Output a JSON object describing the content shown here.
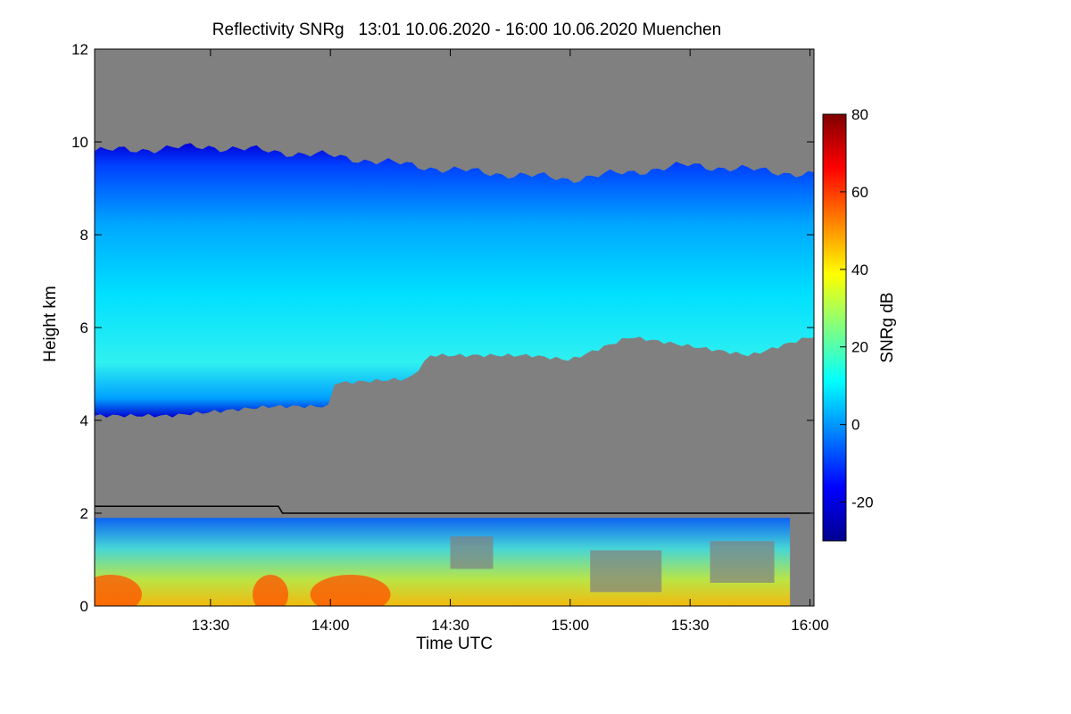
{
  "chart_data": {
    "type": "heatmap",
    "title": "Reflectivity SNRg   13:01 10.06.2020 - 16:00 10.06.2020 Muenchen",
    "xlabel": "Time UTC",
    "ylabel": "Height km",
    "xlim_minutes_utc": [
      781,
      961
    ],
    "ylim": [
      0,
      12
    ],
    "x_ticks": [
      {
        "minute": 810,
        "label": "13:30"
      },
      {
        "minute": 840,
        "label": "14:00"
      },
      {
        "minute": 870,
        "label": "14:30"
      },
      {
        "minute": 900,
        "label": "15:00"
      },
      {
        "minute": 930,
        "label": "15:30"
      },
      {
        "minute": 960,
        "label": "16:00"
      }
    ],
    "y_ticks": [
      0,
      2,
      4,
      6,
      8,
      10,
      12
    ],
    "colorbar": {
      "label": "SNRg dB",
      "range": [
        -30,
        80
      ],
      "ticks": [
        -20,
        0,
        20,
        40,
        60,
        80
      ],
      "colormap": [
        "#00008f",
        "#0000ff",
        "#0080ff",
        "#00ffff",
        "#80ff80",
        "#ffff00",
        "#ff8000",
        "#ff0000",
        "#800000"
      ]
    },
    "background_color": "#808080",
    "upper_cloud_layer": {
      "description": "cirrus layer",
      "top_km": [
        [
          781,
          9.8
        ],
        [
          810,
          9.9
        ],
        [
          840,
          9.7
        ],
        [
          870,
          9.4
        ],
        [
          900,
          9.2
        ],
        [
          930,
          9.5
        ],
        [
          960,
          9.3
        ]
      ],
      "base_km": [
        [
          781,
          4.1
        ],
        [
          800,
          4.1
        ],
        [
          825,
          4.3
        ],
        [
          840,
          4.3
        ],
        [
          841,
          4.8
        ],
        [
          860,
          4.9
        ],
        [
          865,
          5.4
        ],
        [
          890,
          5.4
        ],
        [
          900,
          5.3
        ],
        [
          915,
          5.8
        ],
        [
          930,
          5.6
        ],
        [
          945,
          5.4
        ],
        [
          960,
          5.8
        ]
      ],
      "typical_snr_db": 5
    },
    "lower_echo_layer": {
      "top_km": 1.9,
      "base_km": 0,
      "peak_snr_db": 60,
      "extent_minutes": [
        781,
        955
      ]
    },
    "boundary_layer_line_km": [
      [
        781,
        2.15
      ],
      [
        827,
        2.15
      ],
      [
        828,
        2.0
      ],
      [
        960,
        2.0
      ]
    ]
  }
}
